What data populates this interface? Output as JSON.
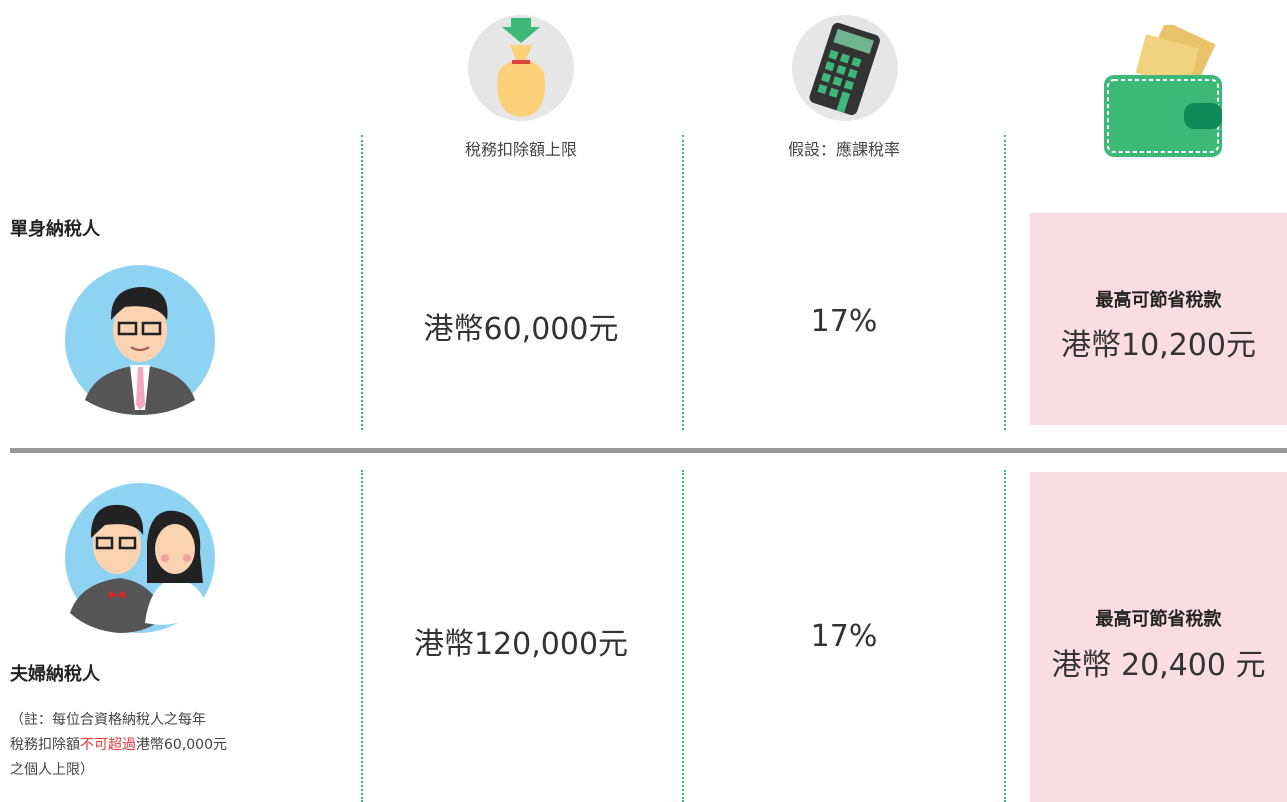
{
  "headers": [
    "稅務扣除額上限",
    "假設：應課稅率"
  ],
  "rows": [
    {
      "label": "單身納稅人",
      "deduction": "港幣60,000元",
      "rate": "17%",
      "savings_label": "最高可節省稅款",
      "savings": "港幣10,200元"
    },
    {
      "label": "夫婦納稅人",
      "deduction": "港幣120,000元",
      "rate": "17%",
      "savings_label": "最高可節省稅款",
      "savings": "港幣 20,400 元"
    }
  ],
  "note": [
    "（註：每位合資格納稅人之每年",
    "稅務扣除額",
    "不可超過",
    "港幣60,000元",
    "之個人上限）"
  ]
}
